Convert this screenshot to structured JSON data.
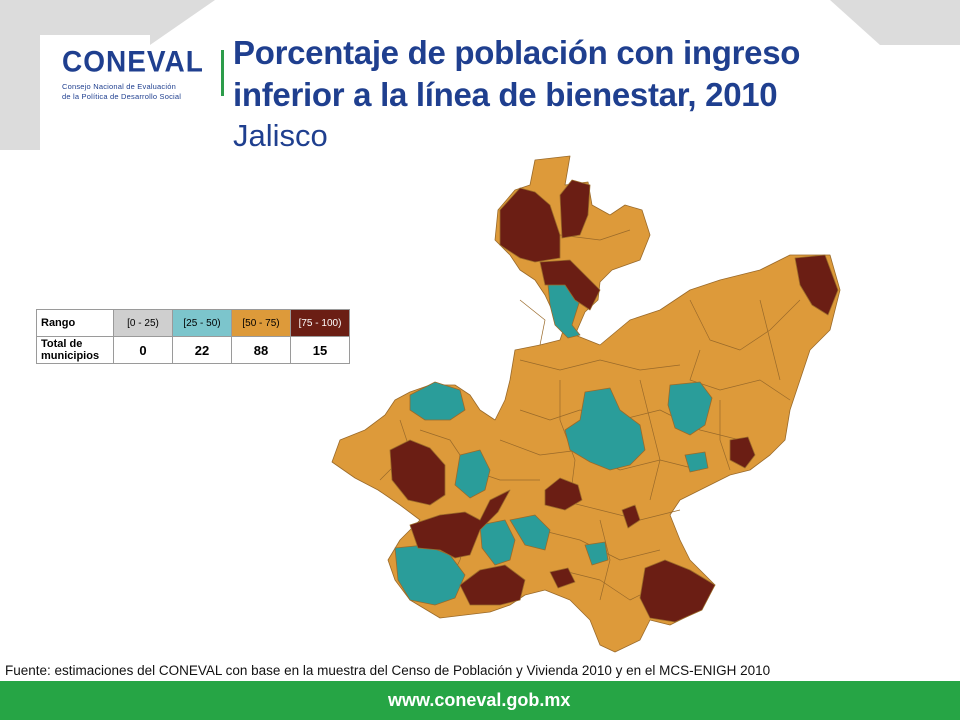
{
  "header": {
    "logo_text": "CONEVAL",
    "logo_subtitle_line1": "Consejo Nacional de Evaluación",
    "logo_subtitle_line2": "de la Política de Desarrollo Social",
    "title_line1": "Porcentaje de población con ingreso",
    "title_line2": "inferior a la línea de bienestar, 2010",
    "subtitle": "Jalisco"
  },
  "legend": {
    "row1_label": "Rango",
    "row2_label": "Total de municipios",
    "ranges": [
      {
        "label": "[0 - 25)",
        "count": "0",
        "color": "#cfcfcf",
        "text_color": "#000000"
      },
      {
        "label": "[25 - 50)",
        "count": "22",
        "color": "#7cc5cc",
        "text_color": "#000000"
      },
      {
        "label": "[50 - 75)",
        "count": "88",
        "color": "#dd9a3a",
        "text_color": "#000000"
      },
      {
        "label": "[75 - 100)",
        "count": "15",
        "color": "#6b1e14",
        "text_color": "#ffffff"
      }
    ]
  },
  "map_colors": {
    "orange": "#dd9a3a",
    "teal": "#2a9d9a",
    "maroon": "#6b1e14",
    "border": "#9a6a2a"
  },
  "source": "Fuente: estimaciones del CONEVAL con base en la muestra del Censo de Población y Vivienda 2010 y en el MCS-ENIGH 2010",
  "footer": {
    "url": "www.coneval.gob.mx",
    "color": "#26a545"
  }
}
